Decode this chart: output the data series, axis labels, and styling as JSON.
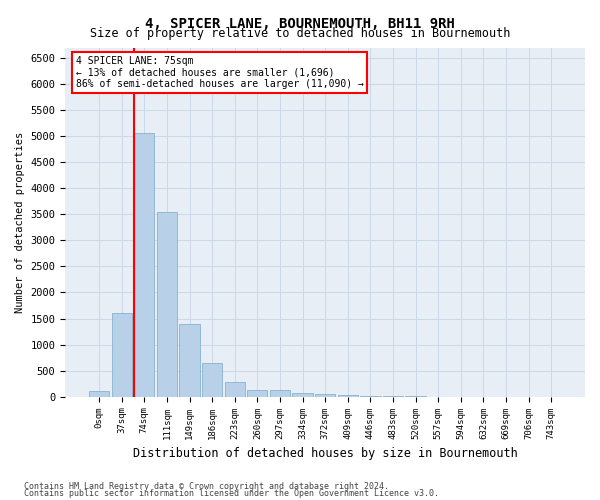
{
  "title": "4, SPICER LANE, BOURNEMOUTH, BH11 9RH",
  "subtitle": "Size of property relative to detached houses in Bournemouth",
  "xlabel": "Distribution of detached houses by size in Bournemouth",
  "ylabel": "Number of detached properties",
  "footnote1": "Contains HM Land Registry data © Crown copyright and database right 2024.",
  "footnote2": "Contains public sector information licensed under the Open Government Licence v3.0.",
  "annotation_line1": "4 SPICER LANE: 75sqm",
  "annotation_line2": "← 13% of detached houses are smaller (1,696)",
  "annotation_line3": "86% of semi-detached houses are larger (11,090) →",
  "bar_color": "#b8d0e8",
  "bar_edge_color": "#7aaac8",
  "red_line_index": 2,
  "categories": [
    "0sqm",
    "37sqm",
    "74sqm",
    "111sqm",
    "149sqm",
    "186sqm",
    "223sqm",
    "260sqm",
    "297sqm",
    "334sqm",
    "372sqm",
    "409sqm",
    "446sqm",
    "483sqm",
    "520sqm",
    "557sqm",
    "594sqm",
    "632sqm",
    "669sqm",
    "706sqm",
    "743sqm"
  ],
  "values": [
    100,
    1600,
    5050,
    3550,
    1400,
    650,
    280,
    130,
    120,
    80,
    50,
    30,
    20,
    10,
    5,
    3,
    2,
    1,
    1,
    0,
    0
  ],
  "ylim": [
    0,
    6700
  ],
  "yticks": [
    0,
    500,
    1000,
    1500,
    2000,
    2500,
    3000,
    3500,
    4000,
    4500,
    5000,
    5500,
    6000,
    6500
  ],
  "grid_color": "#ccd8e8",
  "background_color": "#e8eef6",
  "fig_background": "#ffffff"
}
